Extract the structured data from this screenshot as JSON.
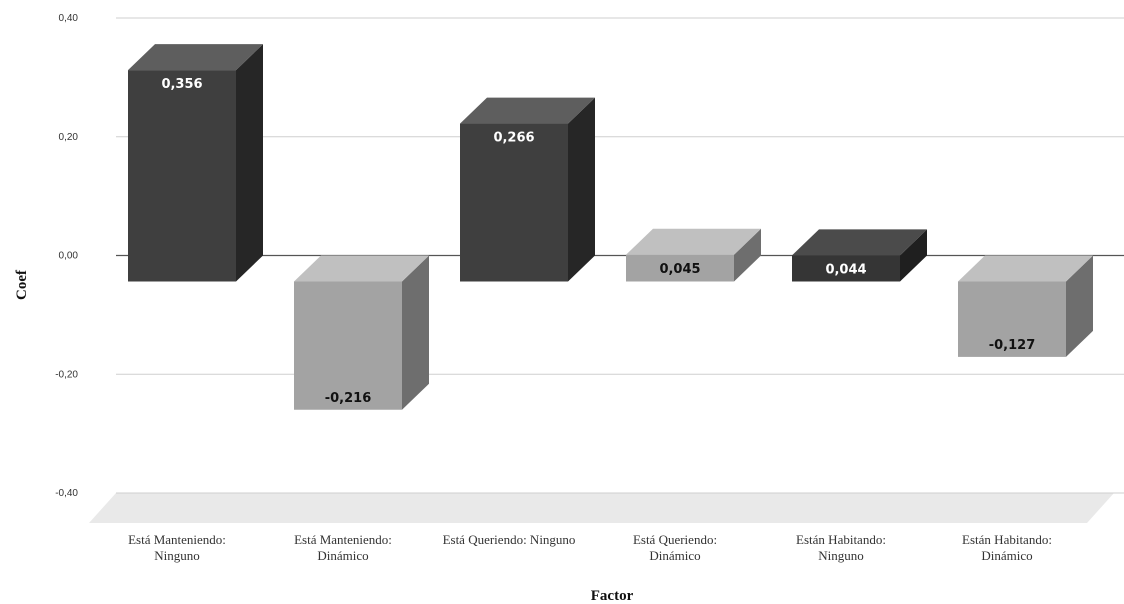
{
  "chart_data": {
    "type": "bar",
    "style": "3d-column",
    "title": "",
    "xlabel": "Factor",
    "ylabel": "Coef",
    "ylim": [
      -0.4,
      0.4
    ],
    "yticks": [
      0.4,
      0.2,
      0.0,
      -0.2,
      -0.4
    ],
    "ytick_labels": [
      "0,40",
      "0,20",
      "0,00",
      "-0,20",
      "-0,40"
    ],
    "grid": true,
    "legend": "none",
    "categories": [
      [
        "Está Manteniendo:",
        "Ninguno"
      ],
      [
        "Está Manteniendo:",
        "Dinámico"
      ],
      [
        "Está Queriendo: Ninguno"
      ],
      [
        "Está Queriendo:",
        "Dinámico"
      ],
      [
        "Están Habitando:",
        "Ninguno"
      ],
      [
        "Están Habitando:",
        "Dinámico"
      ]
    ],
    "values": [
      0.356,
      -0.216,
      0.266,
      0.045,
      0.044,
      -0.127
    ],
    "value_labels": [
      "0,356",
      "-0,216",
      "0,266",
      "0,045",
      "0,044",
      "-0,127"
    ],
    "colors": {
      "dark_front": "#3f3f3f",
      "dark_top": "#5e5e5e",
      "dark_side": "#262626",
      "light_front": "#a3a3a3",
      "light_top": "#c0c0c0",
      "light_side": "#6e6e6e",
      "darkest_front": "#353535",
      "darkest_top": "#4b4b4b",
      "darkest_side": "#1f1f1f",
      "grid": "#cfcfcf",
      "floor": "#e9e9e9",
      "zero_line": "#555555"
    },
    "bar_shades": [
      "dark",
      "light",
      "dark",
      "light",
      "darkest",
      "light"
    ],
    "label_colors": [
      "#ffffff",
      "#111111",
      "#ffffff",
      "#111111",
      "#ffffff",
      "#111111"
    ]
  }
}
